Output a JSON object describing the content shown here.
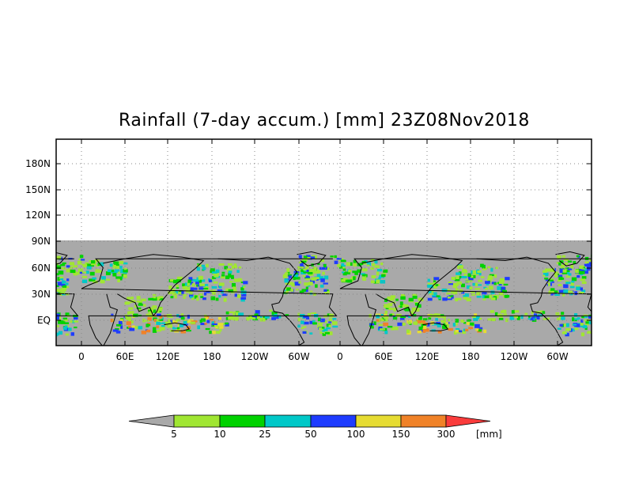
{
  "title": "Rainfall (7-day accum.) [mm] 23Z08Nov2018",
  "map": {
    "y_ticks": [
      "180N",
      "150N",
      "120N",
      "90N",
      "60N",
      "30N",
      "EQ"
    ],
    "x_ticks": [
      "0",
      "60E",
      "120E",
      "180",
      "120W",
      "60W",
      "0",
      "60E",
      "120E",
      "180",
      "120W",
      "60W"
    ],
    "grid": "dotted"
  },
  "legend": {
    "unit": "[mm]",
    "thresholds": [
      "5",
      "10",
      "25",
      "50",
      "100",
      "150",
      "300"
    ],
    "colors": [
      "#a9a9a9",
      "#a0e632",
      "#00d200",
      "#00c8c8",
      "#1e3cff",
      "#e6dc32",
      "#f08228",
      "#fa3c3c"
    ]
  }
}
